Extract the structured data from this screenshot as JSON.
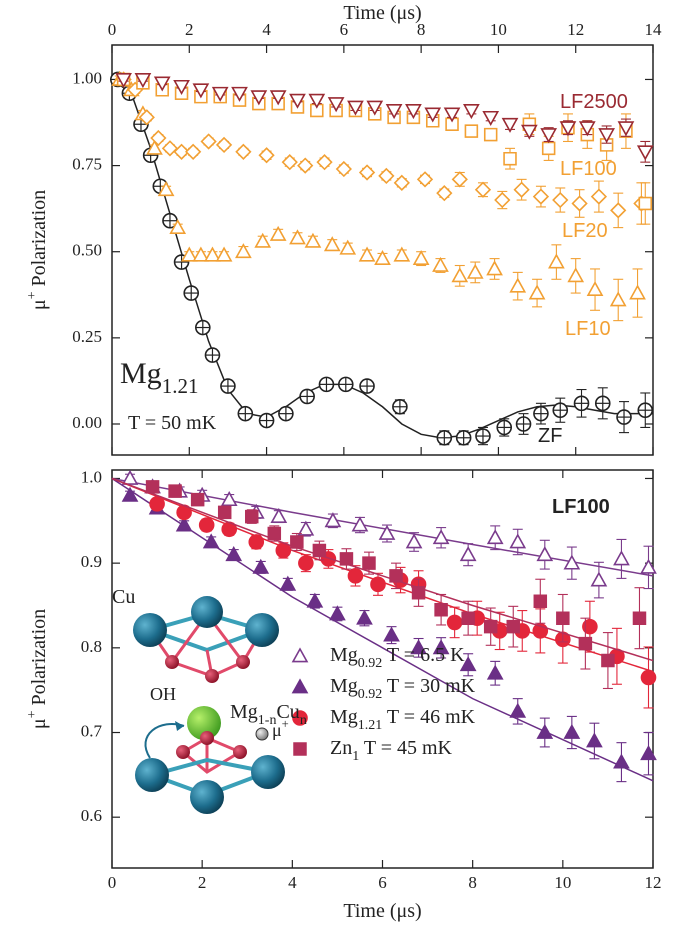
{
  "chart_data": [
    {
      "type": "scatter",
      "x_label": "Time (μs)",
      "y_label": "μ+ Polarization",
      "xaxis_position": "top",
      "xlim": [
        0,
        14
      ],
      "xticks": [
        0,
        2,
        4,
        6,
        8,
        10,
        12,
        14
      ],
      "ylim": [
        -0.09,
        1.1
      ],
      "yticks": [
        {
          "value": 1,
          "label": "1.00"
        },
        0.75,
        {
          "value": 0.5,
          "label": "0.50"
        },
        0.25,
        {
          "value": 0,
          "label": "0.00"
        }
      ],
      "annotations": [
        "Mg1.21",
        "T = 50 mK"
      ],
      "series": [
        {
          "name": "ZF",
          "color": "#222222",
          "marker": "circle-cross",
          "x": [
            0.15,
            0.45,
            0.75,
            1.0,
            1.25,
            1.5,
            1.8,
            2.05,
            2.35,
            2.6,
            3.0,
            3.45,
            4.0,
            4.5,
            5.05,
            5.55,
            6.05,
            6.6,
            7.45,
            8.6,
            9.1,
            9.6,
            10.15,
            10.65,
            11.1,
            11.6,
            12.15,
            12.7,
            13.25,
            13.8
          ],
          "values": [
            1.0,
            0.96,
            0.87,
            0.78,
            0.69,
            0.59,
            0.47,
            0.38,
            0.28,
            0.2,
            0.11,
            0.03,
            0.01,
            0.03,
            0.08,
            0.115,
            0.115,
            0.11,
            0.05,
            -0.04,
            -0.04,
            -0.035,
            -0.01,
            0.0,
            0.03,
            0.04,
            0.06,
            0.06,
            0.02,
            0.04
          ],
          "errors": [
            0.008,
            0.008,
            0.008,
            0.008,
            0.008,
            0.008,
            0.008,
            0.008,
            0.008,
            0.008,
            0.01,
            0.01,
            0.012,
            0.012,
            0.015,
            0.015,
            0.015,
            0.015,
            0.02,
            0.02,
            0.02,
            0.025,
            0.025,
            0.03,
            0.03,
            0.035,
            0.04,
            0.045,
            0.045,
            0.05
          ],
          "fit": {
            "x": [
              0,
              0.5,
              1,
              1.5,
              2,
              2.5,
              3,
              3.5,
              4,
              4.5,
              5,
              5.5,
              6,
              6.5,
              7,
              7.5,
              8,
              8.5,
              9,
              9.5,
              10,
              10.5,
              11,
              11.5,
              12,
              12.5,
              13,
              13.5,
              14
            ],
            "values": [
              1.0,
              0.96,
              0.8,
              0.61,
              0.42,
              0.24,
              0.1,
              0.03,
              0.02,
              0.05,
              0.09,
              0.115,
              0.115,
              0.09,
              0.05,
              0.0,
              -0.03,
              -0.04,
              -0.035,
              -0.015,
              0.01,
              0.035,
              0.05,
              0.055,
              0.05,
              0.04,
              0.03,
              0.03,
              0.03
            ]
          }
        },
        {
          "name": "LF10",
          "color": "#f2a033",
          "marker": "triangle-up-open",
          "x": [
            0.2,
            0.5,
            0.8,
            1.1,
            1.4,
            1.7,
            2.0,
            2.3,
            2.6,
            2.9,
            3.4,
            3.9,
            4.3,
            4.8,
            5.2,
            5.7,
            6.1,
            6.6,
            7.0,
            7.5,
            8.0,
            8.5,
            9.0,
            9.4,
            9.9,
            10.5,
            11.0,
            11.5,
            12.0,
            12.5,
            13.1,
            13.6
          ],
          "values": [
            1.0,
            0.97,
            0.9,
            0.8,
            0.68,
            0.57,
            0.49,
            0.49,
            0.49,
            0.49,
            0.5,
            0.53,
            0.55,
            0.54,
            0.53,
            0.52,
            0.51,
            0.49,
            0.48,
            0.49,
            0.48,
            0.46,
            0.43,
            0.44,
            0.45,
            0.4,
            0.38,
            0.47,
            0.43,
            0.39,
            0.36,
            0.38
          ],
          "errors": [
            0.01,
            0.01,
            0.01,
            0.01,
            0.01,
            0.01,
            0.01,
            0.01,
            0.01,
            0.01,
            0.015,
            0.015,
            0.015,
            0.015,
            0.015,
            0.015,
            0.015,
            0.015,
            0.015,
            0.015,
            0.02,
            0.02,
            0.03,
            0.03,
            0.03,
            0.04,
            0.04,
            0.05,
            0.05,
            0.06,
            0.06,
            0.07
          ]
        },
        {
          "name": "LF20",
          "color": "#f2a033",
          "marker": "diamond-open",
          "x": [
            0.3,
            0.6,
            0.9,
            1.2,
            1.5,
            1.8,
            2.1,
            2.5,
            2.9,
            3.4,
            4.0,
            4.6,
            5.0,
            5.5,
            6.0,
            6.6,
            7.1,
            7.5,
            8.1,
            8.6,
            9.0,
            9.6,
            10.1,
            10.6,
            11.1,
            11.6,
            12.1,
            12.6,
            13.1,
            13.7
          ],
          "values": [
            1.0,
            0.97,
            0.89,
            0.83,
            0.8,
            0.79,
            0.79,
            0.82,
            0.81,
            0.79,
            0.78,
            0.76,
            0.75,
            0.76,
            0.74,
            0.73,
            0.72,
            0.7,
            0.71,
            0.67,
            0.71,
            0.68,
            0.65,
            0.68,
            0.66,
            0.65,
            0.64,
            0.66,
            0.62,
            0.64
          ],
          "errors": [
            0.01,
            0.01,
            0.01,
            0.01,
            0.01,
            0.01,
            0.01,
            0.01,
            0.01,
            0.01,
            0.012,
            0.012,
            0.012,
            0.012,
            0.012,
            0.012,
            0.012,
            0.012,
            0.012,
            0.012,
            0.02,
            0.02,
            0.025,
            0.03,
            0.03,
            0.035,
            0.04,
            0.045,
            0.05,
            0.06
          ]
        },
        {
          "name": "LF100",
          "color": "#f2a033",
          "marker": "square-open",
          "x": [
            0.3,
            0.8,
            1.3,
            1.8,
            2.3,
            2.8,
            3.3,
            3.8,
            4.3,
            4.8,
            5.3,
            5.8,
            6.3,
            6.8,
            7.3,
            7.8,
            8.3,
            8.8,
            9.3,
            9.8,
            10.3,
            10.8,
            11.3,
            11.8,
            12.3,
            12.8,
            13.3,
            13.8
          ],
          "values": [
            1.0,
            0.99,
            0.97,
            0.96,
            0.95,
            0.95,
            0.94,
            0.93,
            0.93,
            0.92,
            0.91,
            0.91,
            0.91,
            0.9,
            0.89,
            0.89,
            0.88,
            0.87,
            0.85,
            0.84,
            0.77,
            0.87,
            0.8,
            0.86,
            0.84,
            0.81,
            0.85,
            0.64
          ],
          "errors": [
            0.01,
            0.01,
            0.01,
            0.01,
            0.01,
            0.01,
            0.01,
            0.01,
            0.01,
            0.01,
            0.015,
            0.015,
            0.015,
            0.015,
            0.015,
            0.015,
            0.015,
            0.015,
            0.015,
            0.015,
            0.03,
            0.03,
            0.035,
            0.04,
            0.04,
            0.045,
            0.05,
            0.06
          ]
        },
        {
          "name": "LF2500",
          "color": "#9a2a32",
          "marker": "triangle-down-open",
          "x": [
            0.3,
            0.8,
            1.3,
            1.8,
            2.3,
            2.8,
            3.3,
            3.8,
            4.3,
            4.8,
            5.3,
            5.8,
            6.3,
            6.8,
            7.3,
            7.8,
            8.3,
            8.8,
            9.3,
            9.8,
            10.3,
            10.8,
            11.3,
            11.8,
            12.3,
            12.8,
            13.3,
            13.8
          ],
          "values": [
            1.0,
            1.0,
            0.99,
            0.98,
            0.97,
            0.96,
            0.96,
            0.95,
            0.95,
            0.94,
            0.94,
            0.93,
            0.92,
            0.92,
            0.91,
            0.91,
            0.9,
            0.9,
            0.91,
            0.89,
            0.87,
            0.85,
            0.84,
            0.86,
            0.86,
            0.84,
            0.86,
            0.79
          ],
          "errors": [
            0.005,
            0.005,
            0.005,
            0.005,
            0.005,
            0.005,
            0.005,
            0.005,
            0.005,
            0.005,
            0.01,
            0.01,
            0.01,
            0.01,
            0.01,
            0.01,
            0.01,
            0.01,
            0.01,
            0.01,
            0.015,
            0.015,
            0.02,
            0.02,
            0.02,
            0.025,
            0.025,
            0.03
          ]
        }
      ]
    },
    {
      "type": "scatter",
      "x_label": "Time (μs)",
      "y_label": "μ+ Polarization",
      "xaxis_position": "bottom",
      "xlim": [
        0,
        12
      ],
      "xticks": [
        0,
        2,
        4,
        6,
        8,
        10,
        12
      ],
      "ylim": [
        0.54,
        1.01
      ],
      "yticks": [
        {
          "value": 1,
          "label": "1.0"
        },
        0.9,
        0.8,
        0.7,
        0.6
      ],
      "annotations": [
        "LF100"
      ],
      "legend": "lower center",
      "inset": {
        "labels": [
          "Cu",
          "OH",
          "Mg1-nCun",
          "μ+"
        ]
      },
      "series": [
        {
          "name": "Mg0.92 T = 6.5 K",
          "color": "#7a3b8c",
          "marker": "triangle-up-open",
          "x": [
            0.4,
            0.9,
            1.5,
            2.0,
            2.6,
            3.2,
            3.7,
            4.3,
            4.9,
            5.5,
            6.1,
            6.7,
            7.3,
            7.9,
            8.5,
            9.0,
            9.6,
            10.2,
            10.8,
            11.3,
            11.9
          ],
          "values": [
            1.0,
            0.99,
            0.985,
            0.98,
            0.975,
            0.96,
            0.955,
            0.94,
            0.95,
            0.945,
            0.935,
            0.925,
            0.93,
            0.91,
            0.93,
            0.925,
            0.91,
            0.9,
            0.88,
            0.905,
            0.895
          ],
          "errors": [
            0.005,
            0.005,
            0.005,
            0.006,
            0.006,
            0.007,
            0.007,
            0.008,
            0.008,
            0.009,
            0.01,
            0.011,
            0.012,
            0.013,
            0.014,
            0.015,
            0.017,
            0.019,
            0.021,
            0.023,
            0.025
          ],
          "fit": {
            "x": [
              0,
              4,
              8,
              12
            ],
            "values": [
              1.0,
              0.96,
              0.922,
              0.885
            ]
          }
        },
        {
          "name": "Mg0.92 T = 30 mK",
          "color": "#6a2f86",
          "marker": "triangle-up",
          "x": [
            0.4,
            1.0,
            1.6,
            2.2,
            2.7,
            3.3,
            3.9,
            4.5,
            5.0,
            5.6,
            6.2,
            6.8,
            7.3,
            7.9,
            8.5,
            9.0,
            9.6,
            10.2,
            10.7,
            11.3,
            11.9
          ],
          "values": [
            0.98,
            0.965,
            0.945,
            0.925,
            0.91,
            0.895,
            0.875,
            0.855,
            0.84,
            0.835,
            0.815,
            0.8,
            0.8,
            0.78,
            0.77,
            0.725,
            0.7,
            0.7,
            0.69,
            0.665,
            0.675
          ],
          "errors": [
            0.005,
            0.005,
            0.005,
            0.006,
            0.006,
            0.007,
            0.007,
            0.008,
            0.008,
            0.009,
            0.01,
            0.011,
            0.012,
            0.013,
            0.014,
            0.015,
            0.017,
            0.019,
            0.021,
            0.023,
            0.025
          ],
          "fit": {
            "x": [
              0,
              4,
              8,
              12
            ],
            "values": [
              1.0,
              0.86,
              0.74,
              0.643
            ]
          }
        },
        {
          "name": "Mg1.21 T = 46 mK",
          "color": "#e3263a",
          "marker": "circle",
          "x": [
            1.0,
            1.6,
            2.1,
            2.6,
            3.2,
            3.8,
            4.3,
            4.8,
            5.4,
            5.9,
            6.4,
            6.8,
            7.6,
            8.1,
            8.6,
            9.1,
            9.5,
            10.0,
            10.6,
            11.2,
            11.9
          ],
          "values": [
            0.97,
            0.96,
            0.945,
            0.94,
            0.925,
            0.915,
            0.9,
            0.905,
            0.885,
            0.875,
            0.88,
            0.875,
            0.83,
            0.835,
            0.82,
            0.82,
            0.82,
            0.81,
            0.825,
            0.79,
            0.765
          ],
          "errors": [
            0.006,
            0.006,
            0.007,
            0.007,
            0.008,
            0.009,
            0.01,
            0.011,
            0.012,
            0.013,
            0.015,
            0.016,
            0.018,
            0.02,
            0.022,
            0.024,
            0.026,
            0.028,
            0.03,
            0.033,
            0.036
          ],
          "fit": {
            "x": [
              0,
              4,
              8,
              12
            ],
            "values": [
              1.0,
              0.915,
              0.84,
              0.772
            ]
          }
        },
        {
          "name": "Zn1 T = 45 mK",
          "color": "#b3305a",
          "marker": "square",
          "x": [
            0.9,
            1.4,
            1.9,
            2.5,
            3.1,
            3.6,
            4.1,
            4.6,
            5.2,
            5.7,
            6.3,
            6.8,
            7.3,
            7.9,
            8.4,
            8.9,
            9.5,
            10.0,
            10.5,
            11.0,
            11.7
          ],
          "values": [
            0.99,
            0.985,
            0.975,
            0.96,
            0.955,
            0.935,
            0.925,
            0.915,
            0.905,
            0.9,
            0.885,
            0.865,
            0.845,
            0.835,
            0.825,
            0.825,
            0.855,
            0.835,
            0.805,
            0.785,
            0.835
          ],
          "errors": [
            0.006,
            0.006,
            0.007,
            0.007,
            0.008,
            0.009,
            0.01,
            0.011,
            0.012,
            0.013,
            0.015,
            0.016,
            0.018,
            0.02,
            0.022,
            0.024,
            0.026,
            0.028,
            0.03,
            0.033,
            0.036
          ],
          "fit": {
            "x": [
              0,
              4,
              8,
              12
            ],
            "values": [
              1.0,
              0.92,
              0.85,
              0.785
            ]
          }
        }
      ]
    }
  ]
}
